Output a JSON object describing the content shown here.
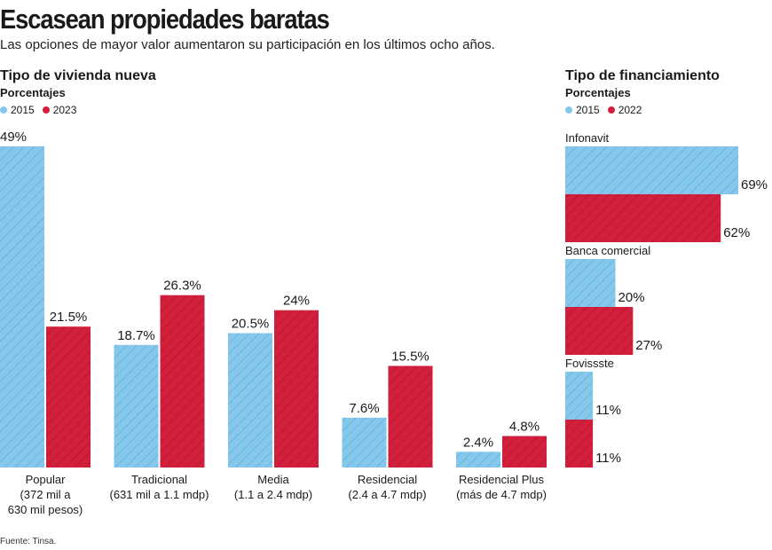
{
  "header": {
    "title": "Escasean propiedades baratas",
    "subtitle": "Las opciones de mayor valor aumentaron su participación en los últimos ocho años."
  },
  "colors": {
    "blue": "#86c8ec",
    "red": "#d21f3c"
  },
  "footer": {
    "source": "Fuente: Tinsa."
  },
  "chart_data": [
    {
      "type": "bar",
      "title": "Tipo de vivienda nueva",
      "unit": "Porcentajes",
      "categories": [
        [
          "Popular",
          "(372 mil a",
          "630 mil pesos)"
        ],
        [
          "Tradicional",
          "(631 mil a 1.1 mdp)"
        ],
        [
          "Media",
          "(1.1 a 2.4 mdp)"
        ],
        [
          "Residencial",
          "(2.4 a 4.7 mdp)"
        ],
        [
          "Residencial Plus",
          "(más de 4.7 mdp)"
        ]
      ],
      "series": [
        {
          "name": "2015",
          "values": [
            49,
            18.7,
            20.5,
            7.6,
            2.4
          ],
          "labels": [
            "49%",
            "18.7%",
            "20.5%",
            "7.6%",
            "2.4%"
          ]
        },
        {
          "name": "2023",
          "values": [
            21.5,
            26.3,
            24,
            15.5,
            4.8
          ],
          "labels": [
            "21.5%",
            "26.3%",
            "24%",
            "15.5%",
            "4.8%"
          ]
        }
      ],
      "ylim": [
        0,
        49
      ]
    },
    {
      "type": "bar",
      "orientation": "horizontal",
      "title": "Tipo de financiamiento",
      "unit": "Porcentajes",
      "categories": [
        "Infonavit",
        "Banca comercial",
        "Fovissste"
      ],
      "series": [
        {
          "name": "2015",
          "values": [
            69,
            20,
            11
          ],
          "labels": [
            "69%",
            "20%",
            "11%"
          ]
        },
        {
          "name": "2022",
          "values": [
            62,
            27,
            11
          ],
          "labels": [
            "62%",
            "27%",
            "11%"
          ]
        }
      ],
      "xlim": [
        0,
        69
      ]
    }
  ]
}
